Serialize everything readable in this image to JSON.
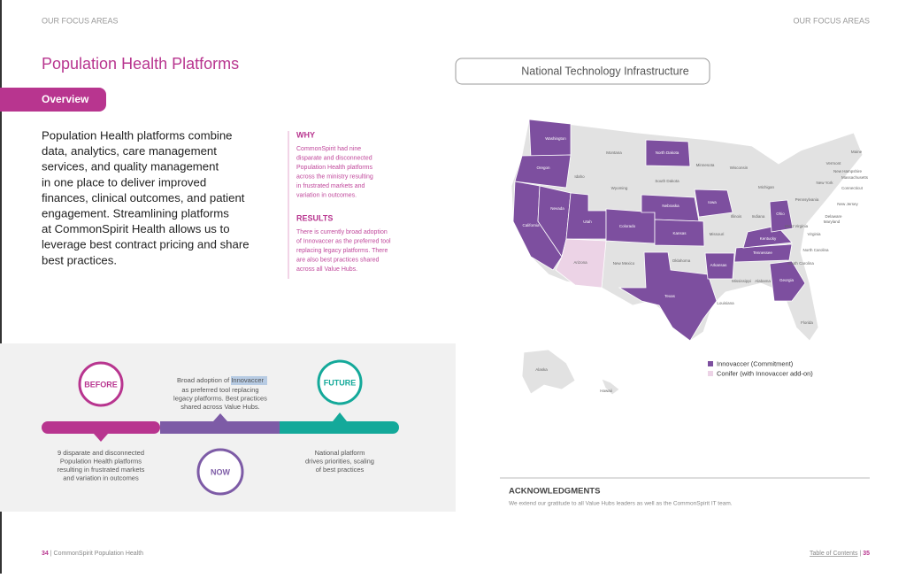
{
  "left_page": {
    "section": "OUR FOCUS AREAS",
    "title": "Population Health Platforms",
    "tab": "Overview",
    "body_lines": [
      "Population Health platforms combine",
      "data, analytics, care management",
      "services, and quality management",
      "in one place to deliver improved",
      "finances, clinical outcomes, and patient",
      "engagement. Streamlining platforms",
      "at CommonSpirit Health allows us to",
      "leverage best contract pricing and share",
      "best practices."
    ],
    "why": {
      "heading": "WHY",
      "lines": [
        "CommonSpirit had nine",
        "disparate and disconnected",
        "Population Health platforms",
        "across the ministry resulting",
        "in frustrated markets and",
        "variation in outcomes."
      ]
    },
    "results": {
      "heading": "RESULTS",
      "lines": [
        "There is currently broad adoption",
        "of Innovaccer as the preferred tool",
        "replacing legacy platforms. There",
        "are also best practices shared",
        "across all Value Hubs."
      ]
    },
    "timeline": {
      "before": {
        "label": "BEFORE",
        "lines": [
          "9 disparate and disconnected",
          "Population Health platforms",
          "resulting in frustrated markets",
          "and variation in outcomes"
        ]
      },
      "now": {
        "label": "NOW",
        "lead": "Broad adoption of",
        "highlight": "Innovaccer",
        "lines": [
          "as preferred tool replacing",
          "legacy platforms. Best practices",
          "shared across Value Hubs."
        ]
      },
      "future": {
        "label": "FUTURE",
        "lines": [
          "National platform",
          "drives priorities, scaling",
          "of best practices"
        ]
      }
    },
    "footer": {
      "page": "34",
      "name": "CommonSpirit Population Health"
    }
  },
  "right_page": {
    "section": "OUR FOCUS AREAS",
    "map_title": "National Technology Infrastructure",
    "states": [
      "Washington",
      "Oregon",
      "Idaho",
      "Montana",
      "Wyoming",
      "North Dakota",
      "South Dakota",
      "Minnesota",
      "Wisconsin",
      "Michigan",
      "Nebraska",
      "Iowa",
      "Illinois",
      "Indiana",
      "Ohio",
      "Pennsylvania",
      "New York",
      "Vermont",
      "New Hampshire",
      "Massachusetts",
      "Connecticut",
      "New Jersey",
      "Delaware",
      "Maryland",
      "West Virginia",
      "Virginia",
      "Kentucky",
      "North Carolina",
      "Tennessee",
      "South Carolina",
      "Georgia",
      "Alabama",
      "Mississippi",
      "Louisiana",
      "Arkansas",
      "Missouri",
      "Oklahoma",
      "Texas",
      "New Mexico",
      "Arizona",
      "Colorado",
      "Utah",
      "Nevada",
      "California",
      "Kansas",
      "Florida",
      "Maine",
      "Alaska",
      "Hawaii"
    ],
    "legend": [
      {
        "label": "Innovaccer (Commitment)",
        "color": "#7d4f9f"
      },
      {
        "label": "Conifer (with Innovaccer add-on)",
        "color": "#ecd3e6"
      }
    ],
    "acknowledgments": {
      "heading": "ACKNOWLEDGMENTS",
      "text": "We extend our gratitude to all Value Hubs leaders as well as the CommonSpirit IT team."
    },
    "footer": {
      "link": "Table of Contents",
      "page": "35"
    }
  }
}
